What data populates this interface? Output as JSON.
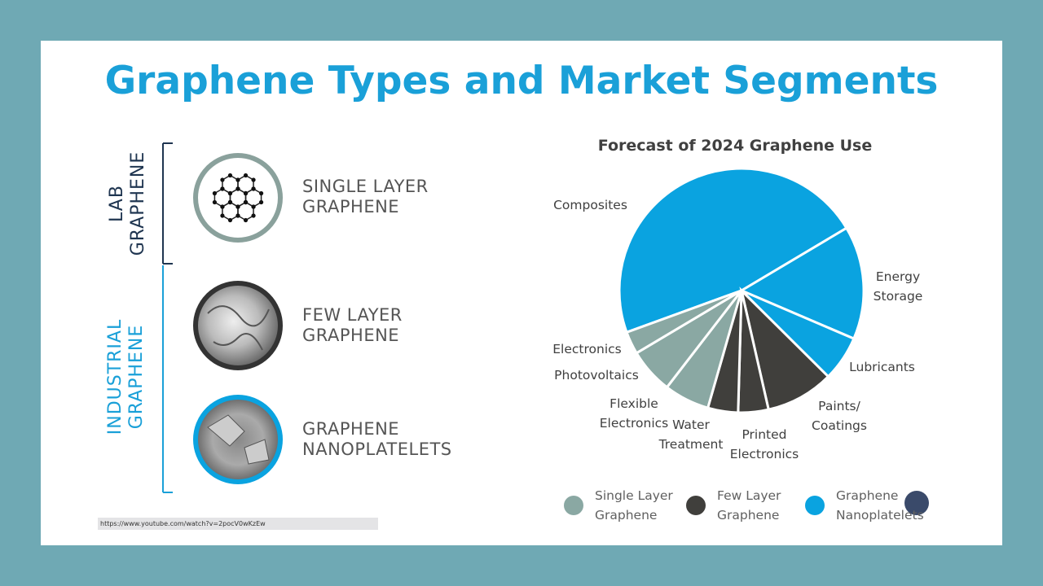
{
  "header": {
    "title": "Graphene Types and Market Segments"
  },
  "groups": [
    {
      "label": "LAB GRAPHENE",
      "items": [
        "SINGLE LAYER GRAPHENE"
      ]
    },
    {
      "label": "INDUSTRIAL GRAPHENE",
      "items": [
        "FEW LAYER GRAPHENE",
        "GRAPHENE NANOPLATELETS"
      ]
    }
  ],
  "url": "https://www.youtube.com/watch?v=2pocV0wKzEw",
  "chart_data": {
    "type": "pie",
    "title": "Forecast of 2024 Graphene Use",
    "categories": [
      "Composites",
      "Energy Storage",
      "Lubricants",
      "Paints/ Coatings",
      "Printed Electronics",
      "Water Treatment",
      "Flexible Electronics",
      "Photovoltaics",
      "Electronics"
    ],
    "values": [
      47,
      15,
      6,
      9,
      4,
      4,
      6,
      6,
      3
    ],
    "slice_types": [
      2,
      2,
      2,
      1,
      1,
      1,
      0,
      0,
      0
    ],
    "series": [
      {
        "name": "Single Layer Graphene",
        "color": "#8aa8a3"
      },
      {
        "name": "Few Layer Graphene",
        "color": "#403f3c"
      },
      {
        "name": "Graphene Nanoplatelets",
        "color": "#0aa3e0"
      }
    ]
  }
}
